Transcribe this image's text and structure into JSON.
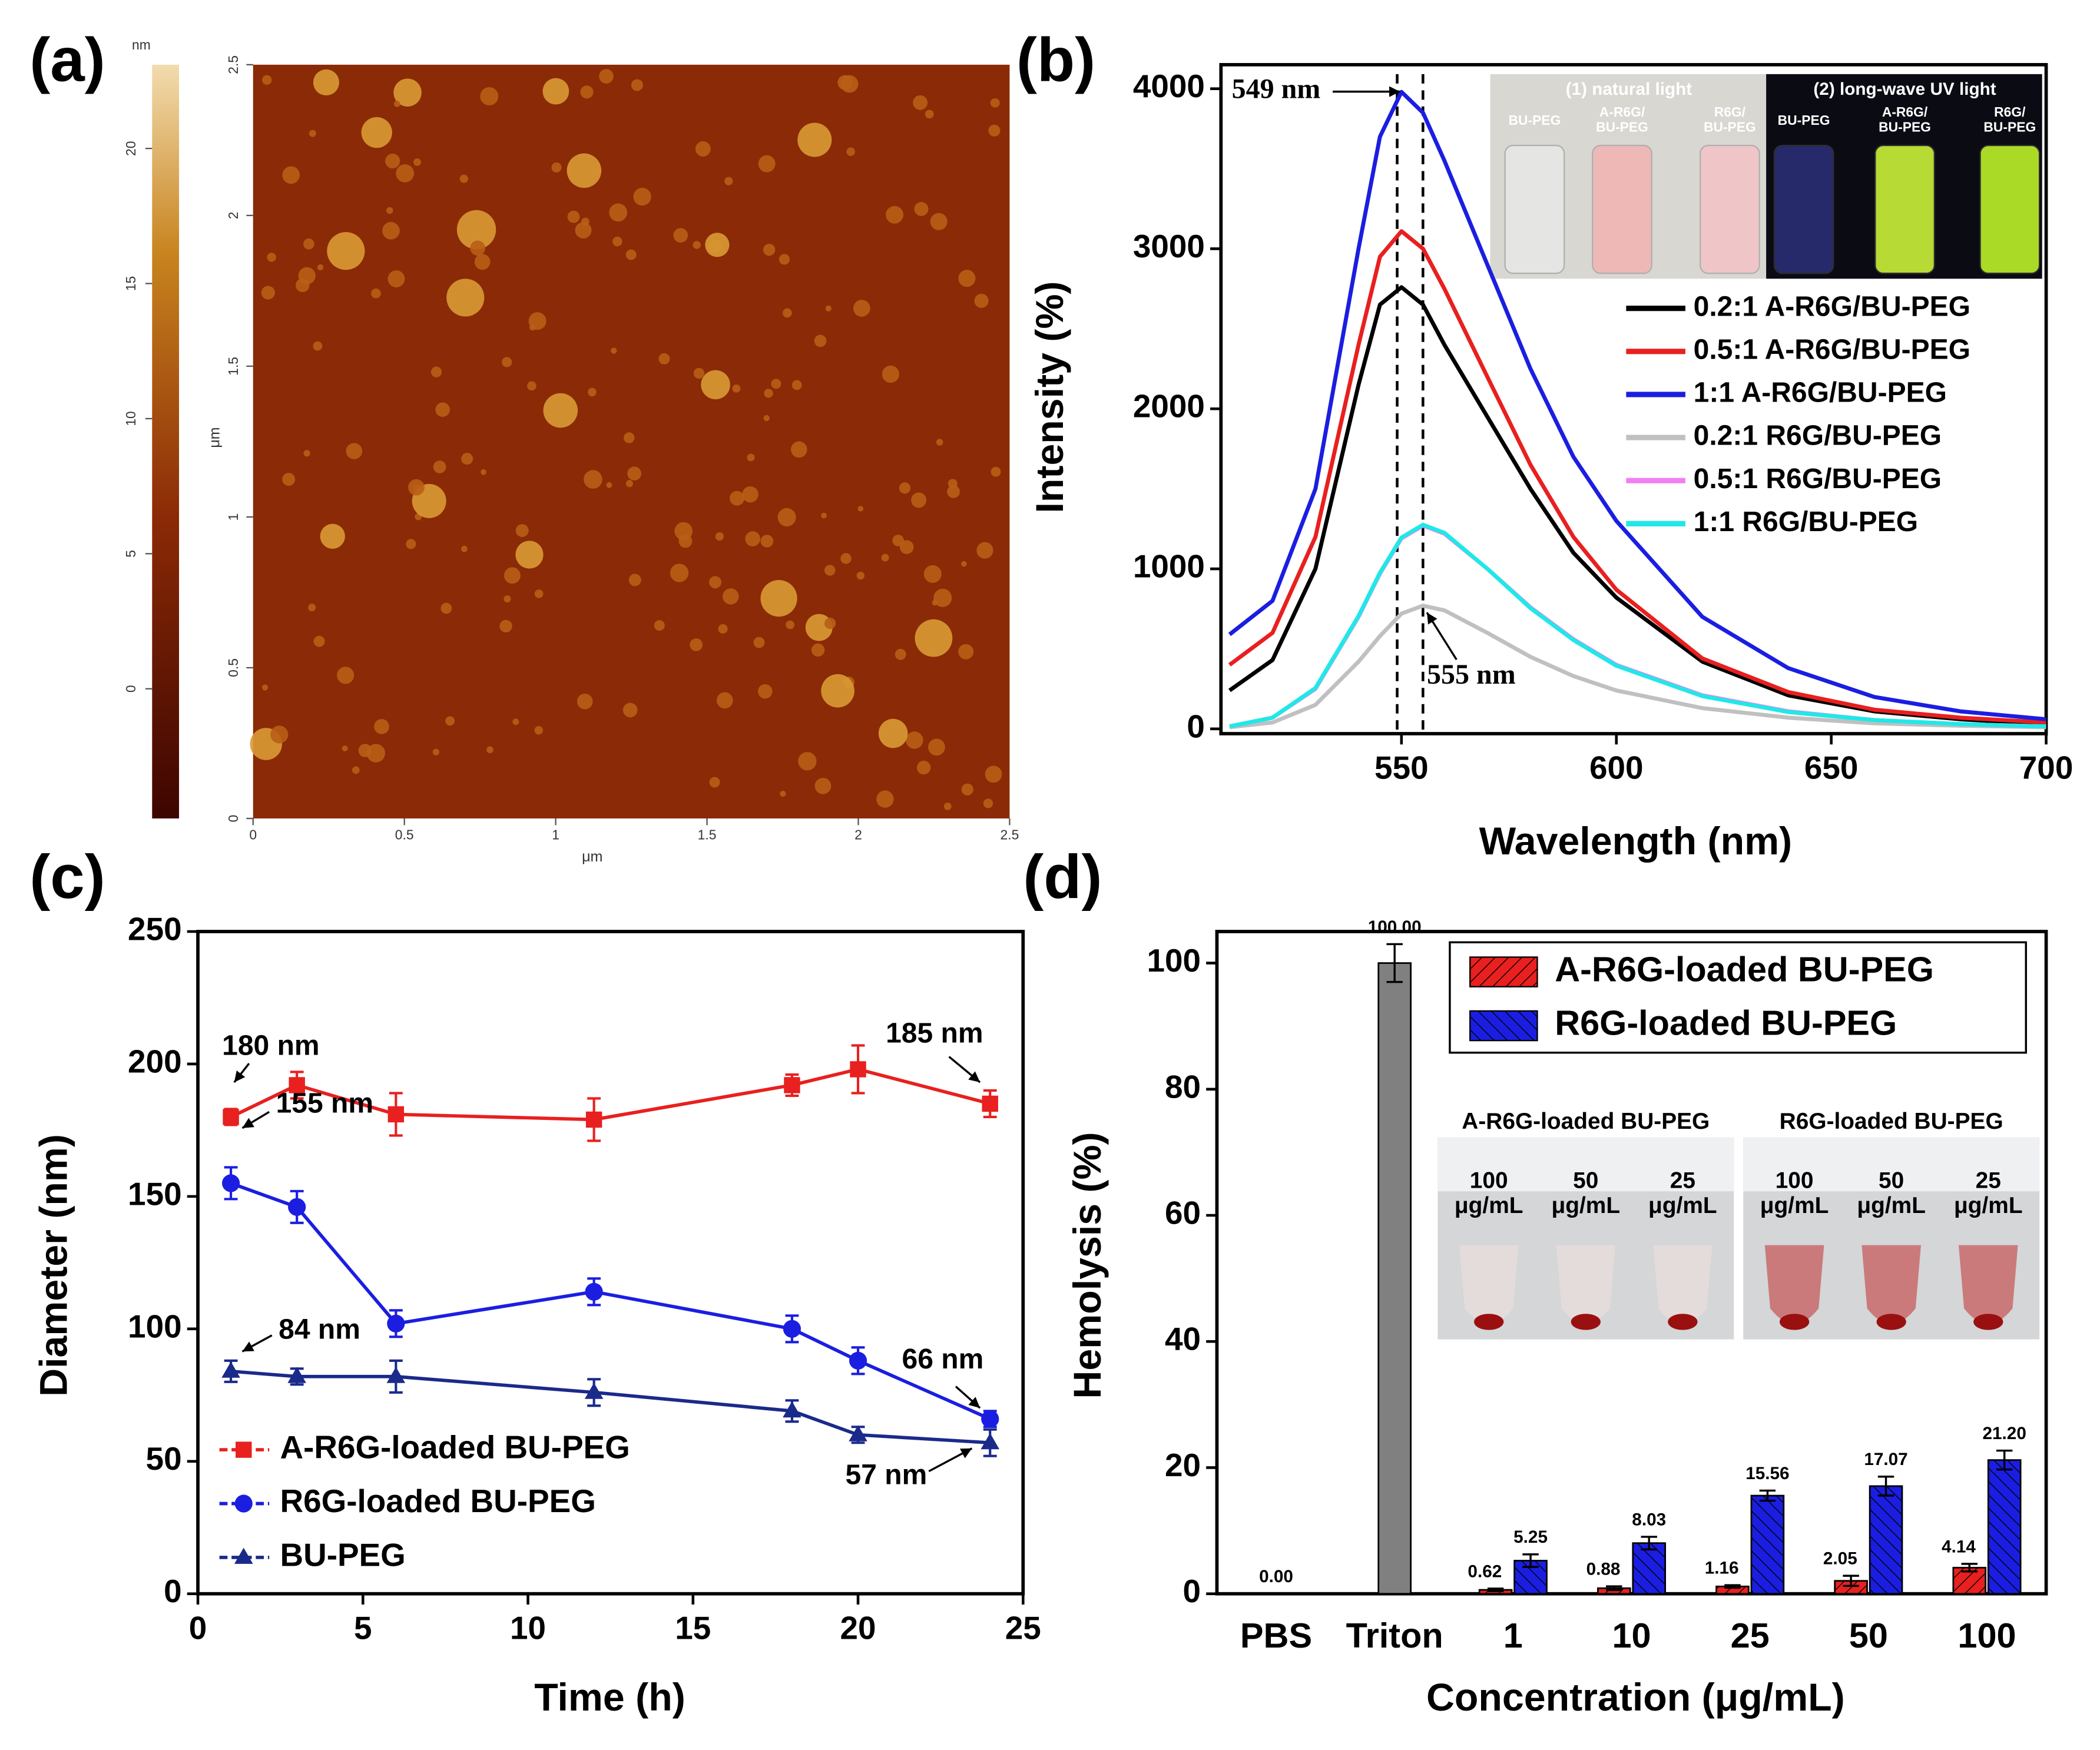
{
  "chart_data": [
    {
      "type": "image",
      "panel": "(a)",
      "xlabel": "μm",
      "ylabel": "μm",
      "xlim": [
        0,
        2.5
      ],
      "xticks": [
        0,
        0.5,
        1,
        1.5,
        2,
        2.5
      ],
      "ylim": [
        0,
        2.5
      ],
      "yticks": [
        0,
        0.5,
        1,
        1.5,
        2,
        2.5
      ],
      "colorbar": {
        "label": "nm",
        "lim": [
          -4.8,
          23.1
        ],
        "ticks": [
          0,
          5,
          10,
          15,
          20
        ]
      }
    },
    {
      "type": "line",
      "panel": "(b)",
      "xlabel": "Wavelength (nm)",
      "ylabel": "Intensity (%)",
      "x": [
        510,
        520,
        530,
        540,
        545,
        550,
        555,
        560,
        570,
        580,
        590,
        600,
        620,
        640,
        660,
        680,
        700
      ],
      "xlim": [
        508,
        700
      ],
      "xticks": [
        550,
        600,
        650,
        700
      ],
      "ylim": [
        -30,
        4150
      ],
      "yticks": [
        0,
        1000,
        2000,
        3000,
        4000
      ],
      "series": [
        {
          "name": "0.2:1 A-R6G/BU-PEG",
          "color": "#000000",
          "values": [
            240,
            430,
            1000,
            2150,
            2650,
            2760,
            2650,
            2400,
            1950,
            1500,
            1100,
            820,
            420,
            210,
            110,
            60,
            30
          ]
        },
        {
          "name": "0.5:1 A-R6G/BU-PEG",
          "color": "#e8201f",
          "values": [
            400,
            600,
            1200,
            2400,
            2950,
            3110,
            3000,
            2750,
            2200,
            1650,
            1200,
            870,
            440,
            230,
            120,
            70,
            40
          ]
        },
        {
          "name": "1:1 A-R6G/BU-PEG",
          "color": "#1b1ee0",
          "values": [
            590,
            800,
            1500,
            3000,
            3700,
            3980,
            3850,
            3550,
            2900,
            2250,
            1700,
            1300,
            700,
            380,
            200,
            110,
            60
          ]
        },
        {
          "name": "0.2:1 R6G/BU-PEG",
          "color": "#c0c0c0",
          "values": [
            10,
            40,
            150,
            420,
            580,
            720,
            770,
            740,
            600,
            450,
            330,
            240,
            130,
            70,
            35,
            20,
            10
          ]
        },
        {
          "name": "0.5:1 R6G/BU-PEG",
          "color": "#f080f0",
          "values": [
            15,
            70,
            250,
            700,
            970,
            1190,
            1270,
            1220,
            1000,
            760,
            560,
            400,
            210,
            110,
            55,
            30,
            15
          ]
        },
        {
          "name": "1:1 R6G/BU-PEG",
          "color": "#20e8e8",
          "values": [
            15,
            70,
            255,
            705,
            975,
            1195,
            1275,
            1225,
            1000,
            755,
            555,
            395,
            205,
            105,
            55,
            30,
            15
          ]
        }
      ],
      "vlines": [
        549,
        555
      ],
      "annotations": [
        "549 nm",
        "555 nm"
      ],
      "inset": {
        "titles": [
          "(1) natural light",
          "(2) long-wave UV light"
        ],
        "labels": [
          [
            "BU-PEG"
          ],
          [
            "A-R6G/",
            "BU-PEG"
          ],
          [
            "R6G/",
            "BU-PEG"
          ],
          [
            "BU-PEG"
          ],
          [
            "A-R6G/",
            "BU-PEG"
          ],
          [
            "R6G/",
            "BU-PEG"
          ]
        ]
      },
      "legend": "right"
    },
    {
      "type": "line",
      "panel": "(c)",
      "xlabel": "Time (h)",
      "ylabel": "Diameter (nm)",
      "x": [
        1,
        3,
        6,
        12,
        18,
        20,
        24
      ],
      "xlim": [
        0,
        25
      ],
      "xticks": [
        0,
        5,
        10,
        15,
        20,
        25
      ],
      "ylim": [
        0,
        250
      ],
      "yticks": [
        0,
        50,
        100,
        150,
        200,
        250
      ],
      "series": [
        {
          "name": "A-R6G-loaded BU-PEG",
          "color": "#e8201f",
          "marker": "square",
          "values": [
            180,
            192,
            181,
            179,
            192,
            198,
            185
          ],
          "errors": [
            3,
            5,
            8,
            8,
            4,
            9,
            5
          ]
        },
        {
          "name": "R6G-loaded BU-PEG",
          "color": "#1b1ee0",
          "marker": "circle",
          "values": [
            155,
            146,
            102,
            114,
            100,
            88,
            66
          ],
          "errors": [
            6,
            6,
            5,
            5,
            5,
            5,
            3
          ]
        },
        {
          "name": "BU-PEG",
          "color": "#1a2a8a",
          "marker": "triangle",
          "values": [
            84,
            82,
            82,
            76,
            69,
            60,
            57
          ],
          "errors": [
            4,
            3,
            6,
            5,
            4,
            3,
            5
          ]
        }
      ],
      "annotations": [
        "180 nm",
        "185 nm",
        "155 nm",
        "84 nm",
        "66 nm",
        "57 nm"
      ],
      "legend": "lower left"
    },
    {
      "type": "bar",
      "panel": "(d)",
      "xlabel": "Concentration (μg/mL)",
      "ylabel": "Hemolysis (%)",
      "categories": [
        "PBS",
        "Triton",
        "1",
        "10",
        "25",
        "50",
        "100"
      ],
      "ylim": [
        0,
        105
      ],
      "yticks": [
        0,
        20,
        40,
        60,
        80,
        100
      ],
      "series": [
        {
          "color": "#808080",
          "values": [
            0,
            100,
            null,
            null,
            null,
            null,
            null
          ],
          "errors": [
            null,
            3,
            null,
            null,
            null,
            null,
            null
          ],
          "value_labels": [
            "0.00",
            "100.00",
            null,
            null,
            null,
            null,
            null
          ]
        },
        {
          "name": "A-R6G-loaded BU-PEG",
          "color": "#e8201f",
          "values": [
            null,
            null,
            0.62,
            0.88,
            1.16,
            2.05,
            4.14
          ],
          "errors": [
            null,
            null,
            0.2,
            0.3,
            0.2,
            0.8,
            0.6
          ],
          "value_labels": [
            null,
            null,
            "0.62",
            "0.88",
            "1.16",
            "2.05",
            "4.14"
          ]
        },
        {
          "name": "R6G-loaded BU-PEG",
          "color": "#1b1ee0",
          "values": [
            null,
            null,
            5.25,
            8.03,
            15.56,
            17.07,
            21.2
          ],
          "errors": [
            null,
            null,
            1,
            1,
            0.8,
            1.5,
            1.5
          ],
          "value_labels": [
            null,
            null,
            "5.25",
            "8.03",
            "15.56",
            "17.07",
            "21.20"
          ]
        }
      ],
      "inset": {
        "titles": [
          "A-R6G-loaded BU-PEG",
          "R6G-loaded BU-PEG"
        ],
        "labels": [
          [
            "100",
            "μg/mL"
          ],
          [
            "50",
            "μg/mL"
          ],
          [
            "25",
            "μg/mL"
          ],
          [
            "100",
            "μg/mL"
          ],
          [
            "50",
            "μg/mL"
          ],
          [
            "25",
            "μg/mL"
          ]
        ]
      },
      "legend": "upper right"
    }
  ]
}
